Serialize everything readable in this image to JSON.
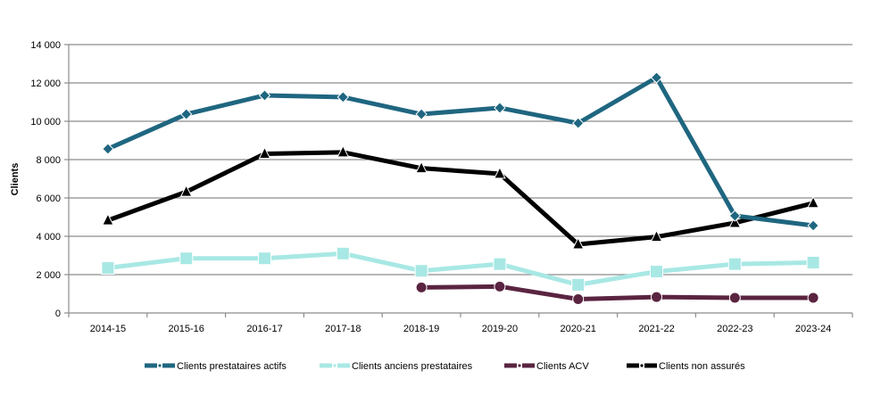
{
  "chart_data": {
    "type": "line",
    "title": "",
    "xlabel": "",
    "ylabel": "Clients",
    "ylim": [
      0,
      14000
    ],
    "yticks": [
      0,
      2000,
      4000,
      6000,
      8000,
      10000,
      12000,
      14000
    ],
    "ytick_labels": [
      "0",
      "2 000",
      "4 000",
      "6 000",
      "8 000",
      "10 000",
      "12 000",
      "14 000"
    ],
    "grid": true,
    "legend_position": "bottom",
    "categories": [
      "2014-15",
      "2015-16",
      "2016-17",
      "2017-18",
      "2018-19",
      "2019-20",
      "2020-21",
      "2021-22",
      "2022-23",
      "2023-24"
    ],
    "series": [
      {
        "name": "Clients prestataires actifs",
        "color": "#1f6680",
        "marker": "diamond",
        "values": [
          8560,
          10370,
          11350,
          11260,
          10370,
          10700,
          9900,
          12280,
          5070,
          4560
        ]
      },
      {
        "name": "Clients anciens prestataires",
        "color": "#a8e8e4",
        "marker": "square",
        "values": [
          2350,
          2850,
          2850,
          3100,
          2200,
          2550,
          1470,
          2160,
          2550,
          2630
        ]
      },
      {
        "name": "Clients ACV",
        "color": "#5a2440",
        "marker": "circle",
        "values": [
          null,
          null,
          null,
          null,
          1330,
          1380,
          720,
          830,
          790,
          790
        ]
      },
      {
        "name": "Clients non assurés",
        "color": "#000000",
        "marker": "triangle",
        "values": [
          4830,
          6320,
          8300,
          8380,
          7550,
          7260,
          3580,
          3970,
          4700,
          5730
        ]
      }
    ]
  }
}
